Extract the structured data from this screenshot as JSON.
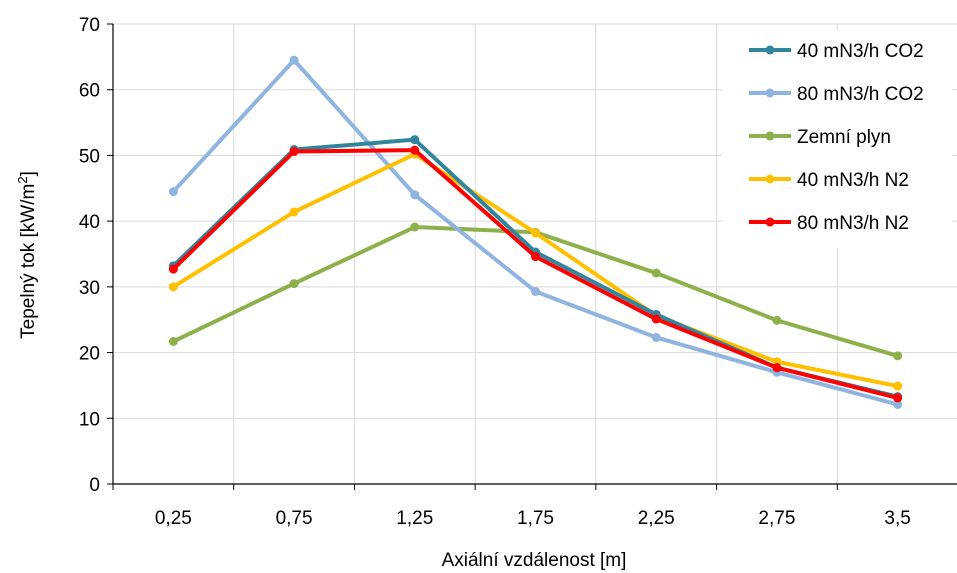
{
  "chart_data": {
    "type": "line",
    "xlabel": "Axiální vzdálenost [m]",
    "ylabel_main": "Tepelný tok [kW/m",
    "ylabel_sup": "2",
    "ylabel_end": "]",
    "ylim": [
      0,
      70
    ],
    "yticks": [
      "0",
      "10",
      "20",
      "30",
      "40",
      "50",
      "60",
      "70"
    ],
    "categories": [
      "0,25",
      "0,75",
      "1,25",
      "1,75",
      "2,25",
      "2,75",
      "3,5"
    ],
    "grid": true,
    "legend_position": "top-right",
    "series": [
      {
        "name": "Zemní plyn",
        "color": "#8db04a",
        "values": [
          21.7,
          30.5,
          39.1,
          38.3,
          32.1,
          24.9,
          19.5
        ]
      },
      {
        "name": "80 mN3/h CO2",
        "color": "#8fb4e0",
        "values": [
          44.5,
          64.5,
          44.0,
          29.3,
          22.3,
          17.0,
          12.1
        ]
      },
      {
        "name": "40 mN3/h N2",
        "color": "#ffc000",
        "values": [
          30.0,
          41.4,
          50.2,
          38.2,
          25.6,
          18.6,
          14.9
        ]
      },
      {
        "name": "40 mN3/h CO2",
        "color": "#31859c",
        "values": [
          33.2,
          50.9,
          52.4,
          35.3,
          25.8,
          17.7,
          13.3
        ]
      },
      {
        "name": "80 mN3/h N2",
        "color": "#ff0000",
        "values": [
          32.7,
          50.6,
          50.8,
          34.6,
          25.1,
          17.7,
          13.1
        ]
      }
    ],
    "legend_order": [
      "40 mN3/h CO2",
      "80 mN3/h CO2",
      "Zemní plyn",
      "40 mN3/h N2",
      "80 mN3/h N2"
    ]
  }
}
